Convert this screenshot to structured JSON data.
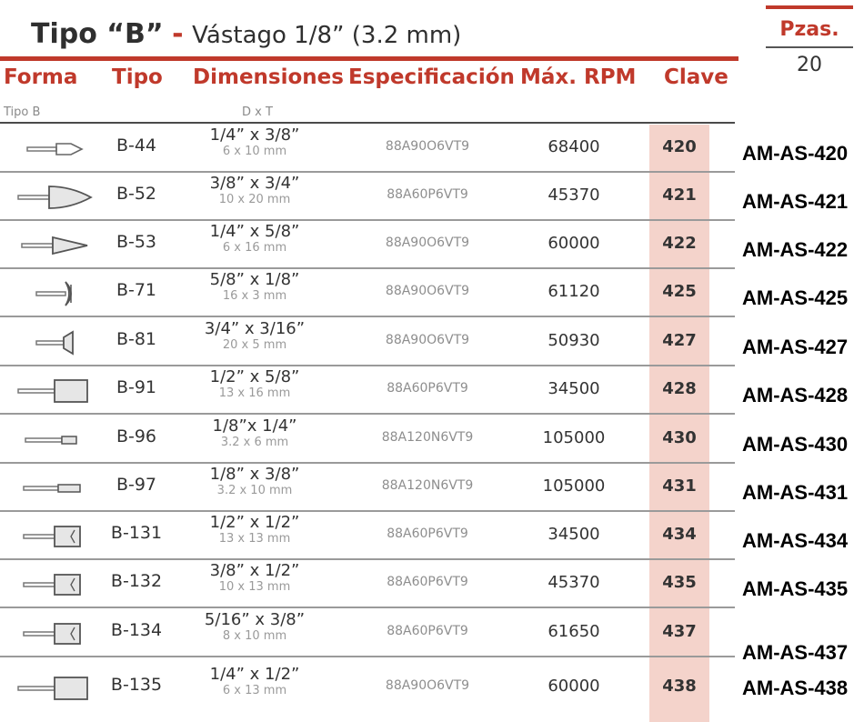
{
  "title": {
    "bold": "Tipo “B”",
    "dash": "-",
    "rest": "Vástago 1/8” (3.2 mm)"
  },
  "pzas": {
    "label": "Pzas.",
    "value": "20"
  },
  "columns": {
    "forma": "Forma",
    "tipo": "Tipo",
    "dimensiones": "Dimensiones",
    "especificacion": "Especificación",
    "rpm": "Máx. RPM",
    "clave": "Clave"
  },
  "subheader": {
    "tipo": "Tipo B",
    "dim": "D x T"
  },
  "rows": [
    {
      "icon": "small-pointed-wheel-icon",
      "tipo": "B-44",
      "dim_in": "1/4” x 3/8”",
      "dim_mm": "6 x 10 mm",
      "spec": "88A90O6VT9",
      "rpm": "68400",
      "clave": "420",
      "code": "AM-AS-420"
    },
    {
      "icon": "large-cone-wheel-icon",
      "tipo": "B-52",
      "dim_in": "3/8” x 3/4”",
      "dim_mm": "10 x 20 mm",
      "spec": "88A60P6VT9",
      "rpm": "45370",
      "clave": "421",
      "code": "AM-AS-421"
    },
    {
      "icon": "cone-wheel-icon",
      "tipo": "B-53",
      "dim_in": "1/4” x 5/8”",
      "dim_mm": "6 x 16 mm",
      "spec": "88A90O6VT9",
      "rpm": "60000",
      "clave": "422",
      "code": "AM-AS-422"
    },
    {
      "icon": "disc-wheel-icon",
      "tipo": "B-71",
      "dim_in": "5/8” x 1/8”",
      "dim_mm": "16 x 3 mm",
      "spec": "88A90O6VT9",
      "rpm": "61120",
      "clave": "425",
      "code": "AM-AS-425"
    },
    {
      "icon": "cup-wheel-icon",
      "tipo": "B-81",
      "dim_in": "3/4” x 3/16”",
      "dim_mm": "20 x 5 mm",
      "spec": "88A90O6VT9",
      "rpm": "50930",
      "clave": "427",
      "code": "AM-AS-427"
    },
    {
      "icon": "cylinder-wheel-icon",
      "tipo": "B-91",
      "dim_in": "1/2” x 5/8”",
      "dim_mm": "13 x 16 mm",
      "spec": "88A60P6VT9",
      "rpm": "34500",
      "clave": "428",
      "code": "AM-AS-428"
    },
    {
      "icon": "small-cylinder-wheel-icon",
      "tipo": "B-96",
      "dim_in": "1/8”x 1/4”",
      "dim_mm": "3.2 x 6 mm",
      "spec": "88A120N6VT9",
      "rpm": "105000",
      "clave": "430",
      "code": "AM-AS-430"
    },
    {
      "icon": "slim-cylinder-wheel-icon",
      "tipo": "B-97",
      "dim_in": "1/8” x 3/8”",
      "dim_mm": "3.2 x 10 mm",
      "spec": "88A120N6VT9",
      "rpm": "105000",
      "clave": "431",
      "code": "AM-AS-431"
    },
    {
      "icon": "square-wheel-icon",
      "tipo": "B-131",
      "dim_in": "1/2” x 1/2”",
      "dim_mm": "13 x 13 mm",
      "spec": "88A60P6VT9",
      "rpm": "34500",
      "clave": "434",
      "code": "AM-AS-434"
    },
    {
      "icon": "square-wheel-icon",
      "tipo": "B-132",
      "dim_in": "3/8” x 1/2”",
      "dim_mm": "10 x 13 mm",
      "spec": "88A60P6VT9",
      "rpm": "45370",
      "clave": "435",
      "code": "AM-AS-435"
    },
    {
      "icon": "square-wheel-icon",
      "tipo": "B-134",
      "dim_in": "5/16” x 3/8”",
      "dim_mm": "8 x 10 mm",
      "spec": "88A60P6VT9",
      "rpm": "61650",
      "clave": "437",
      "code": "AM-AS-437"
    },
    {
      "icon": "cylinder-wheel-icon",
      "tipo": "B-135",
      "dim_in": "1/4” x 1/2”",
      "dim_mm": "6 x 13 mm",
      "spec": "88A90O6VT9",
      "rpm": "60000",
      "clave": "438",
      "code": "AM-AS-438"
    }
  ]
}
